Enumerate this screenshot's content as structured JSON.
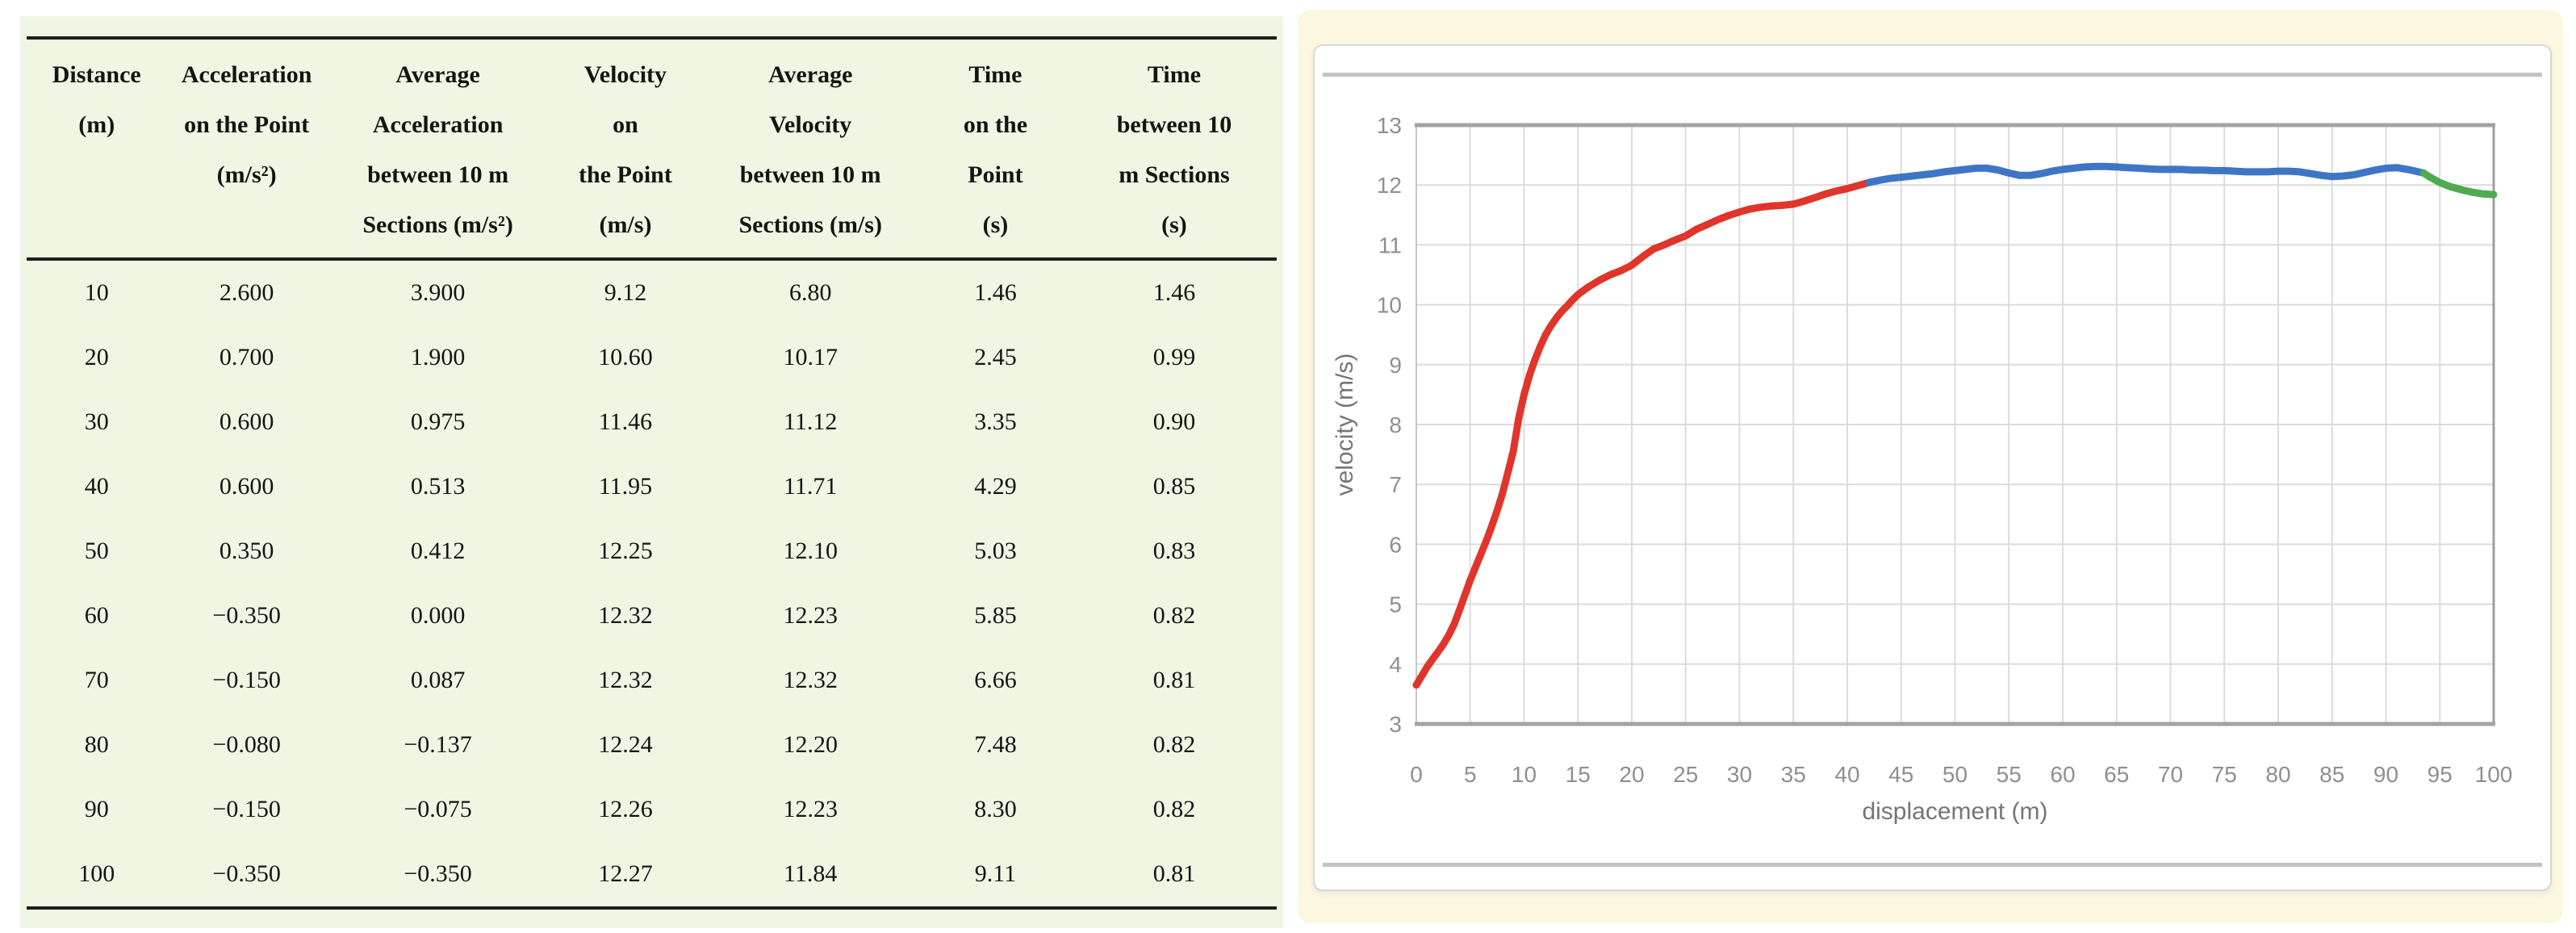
{
  "colors": {
    "table_bg": "#eff7e4",
    "chart_panel_bg": "#fcf7e1",
    "accel_phase": "#e0352b",
    "steady_phase": "#3e76c6",
    "decel_phase": "#4faa51"
  },
  "table": {
    "columns": [
      {
        "id": "distance",
        "lines": [
          "Distance",
          "(m)"
        ]
      },
      {
        "id": "accel-point",
        "lines": [
          "Acceleration",
          "on the Point",
          "(m/s²)"
        ]
      },
      {
        "id": "avg-accel-sections",
        "lines": [
          "Average",
          "Acceleration",
          "between 10 m",
          "Sections (m/s²)"
        ]
      },
      {
        "id": "velocity-point",
        "lines": [
          "Velocity",
          "on",
          "the Point",
          "(m/s)"
        ]
      },
      {
        "id": "avg-velocity-sections",
        "lines": [
          "Average",
          "Velocity",
          "between 10 m",
          "Sections (m/s)"
        ]
      },
      {
        "id": "time-point",
        "lines": [
          "Time",
          "on the",
          "Point",
          "(s)"
        ]
      },
      {
        "id": "time-sections",
        "lines": [
          "Time",
          "between 10",
          "m Sections",
          "(s)"
        ]
      }
    ],
    "rows": [
      [
        "10",
        "2.600",
        "3.900",
        "9.12",
        "6.80",
        "1.46",
        "1.46"
      ],
      [
        "20",
        "0.700",
        "1.900",
        "10.60",
        "10.17",
        "2.45",
        "0.99"
      ],
      [
        "30",
        "0.600",
        "0.975",
        "11.46",
        "11.12",
        "3.35",
        "0.90"
      ],
      [
        "40",
        "0.600",
        "0.513",
        "11.95",
        "11.71",
        "4.29",
        "0.85"
      ],
      [
        "50",
        "0.350",
        "0.412",
        "12.25",
        "12.10",
        "5.03",
        "0.83"
      ],
      [
        "60",
        "−0.350",
        "0.000",
        "12.32",
        "12.23",
        "5.85",
        "0.82"
      ],
      [
        "70",
        "−0.150",
        "0.087",
        "12.32",
        "12.32",
        "6.66",
        "0.81"
      ],
      [
        "80",
        "−0.080",
        "−0.137",
        "12.24",
        "12.20",
        "7.48",
        "0.82"
      ],
      [
        "90",
        "−0.150",
        "−0.075",
        "12.26",
        "12.23",
        "8.30",
        "0.82"
      ],
      [
        "100",
        "−0.350",
        "−0.350",
        "12.27",
        "11.84",
        "9.11",
        "0.81"
      ]
    ]
  },
  "chart_data": {
    "type": "line",
    "title": "",
    "xlabel": "displacement (m)",
    "ylabel": "velocity (m/s)",
    "xlim": [
      0,
      100
    ],
    "ylim": [
      3,
      13
    ],
    "xticks": [
      0,
      5,
      10,
      15,
      20,
      25,
      30,
      35,
      40,
      45,
      50,
      55,
      60,
      65,
      70,
      75,
      80,
      85,
      90,
      95,
      100
    ],
    "yticks": [
      3,
      4,
      5,
      6,
      7,
      8,
      9,
      10,
      11,
      12,
      13
    ],
    "grid": true,
    "legend": "none",
    "series": [
      {
        "name": "acceleration-phase",
        "color": "#e0352b",
        "points": [
          [
            0,
            3.65
          ],
          [
            0.5,
            3.8
          ],
          [
            1,
            3.95
          ],
          [
            1.5,
            4.08
          ],
          [
            2,
            4.2
          ],
          [
            2.5,
            4.33
          ],
          [
            3,
            4.48
          ],
          [
            3.5,
            4.66
          ],
          [
            4,
            4.9
          ],
          [
            4.5,
            5.15
          ],
          [
            5,
            5.4
          ],
          [
            5.5,
            5.62
          ],
          [
            6,
            5.84
          ],
          [
            6.5,
            6.06
          ],
          [
            7,
            6.3
          ],
          [
            7.5,
            6.56
          ],
          [
            8,
            6.85
          ],
          [
            8.5,
            7.2
          ],
          [
            9,
            7.55
          ],
          [
            9.5,
            8.1
          ],
          [
            10,
            8.5
          ],
          [
            10.5,
            8.82
          ],
          [
            11,
            9.08
          ],
          [
            11.5,
            9.3
          ],
          [
            12,
            9.5
          ],
          [
            12.5,
            9.65
          ],
          [
            13,
            9.78
          ],
          [
            13.5,
            9.89
          ],
          [
            14,
            9.98
          ],
          [
            14.5,
            10.08
          ],
          [
            15,
            10.17
          ],
          [
            16,
            10.3
          ],
          [
            17,
            10.41
          ],
          [
            18,
            10.5
          ],
          [
            19,
            10.57
          ],
          [
            20,
            10.66
          ],
          [
            21,
            10.8
          ],
          [
            22,
            10.93
          ],
          [
            23,
            11.0
          ],
          [
            24,
            11.08
          ],
          [
            25,
            11.15
          ],
          [
            26,
            11.26
          ],
          [
            27,
            11.34
          ],
          [
            28,
            11.42
          ],
          [
            29,
            11.49
          ],
          [
            30,
            11.55
          ],
          [
            31,
            11.6
          ],
          [
            32,
            11.63
          ],
          [
            33,
            11.65
          ],
          [
            34,
            11.66
          ],
          [
            35,
            11.68
          ],
          [
            36,
            11.73
          ],
          [
            37,
            11.79
          ],
          [
            38,
            11.85
          ],
          [
            39,
            11.9
          ],
          [
            40,
            11.94
          ],
          [
            41,
            11.99
          ],
          [
            42,
            12.04
          ]
        ]
      },
      {
        "name": "steady-phase",
        "color": "#3e76c6",
        "points": [
          [
            42,
            12.04
          ],
          [
            43,
            12.08
          ],
          [
            44,
            12.11
          ],
          [
            45,
            12.13
          ],
          [
            46,
            12.15
          ],
          [
            47,
            12.17
          ],
          [
            48,
            12.19
          ],
          [
            49,
            12.22
          ],
          [
            50,
            12.24
          ],
          [
            51,
            12.26
          ],
          [
            52,
            12.28
          ],
          [
            53,
            12.28
          ],
          [
            54,
            12.25
          ],
          [
            55,
            12.2
          ],
          [
            56,
            12.16
          ],
          [
            57,
            12.16
          ],
          [
            58,
            12.19
          ],
          [
            59,
            12.23
          ],
          [
            60,
            12.26
          ],
          [
            61,
            12.28
          ],
          [
            62,
            12.3
          ],
          [
            63,
            12.31
          ],
          [
            64,
            12.31
          ],
          [
            65,
            12.3
          ],
          [
            66,
            12.29
          ],
          [
            67,
            12.28
          ],
          [
            68,
            12.27
          ],
          [
            69,
            12.26
          ],
          [
            70,
            12.26
          ],
          [
            71,
            12.26
          ],
          [
            72,
            12.25
          ],
          [
            73,
            12.25
          ],
          [
            74,
            12.24
          ],
          [
            75,
            12.24
          ],
          [
            76,
            12.23
          ],
          [
            77,
            12.22
          ],
          [
            78,
            12.22
          ],
          [
            79,
            12.22
          ],
          [
            80,
            12.23
          ],
          [
            81,
            12.23
          ],
          [
            82,
            12.22
          ],
          [
            83,
            12.19
          ],
          [
            84,
            12.16
          ],
          [
            85,
            12.14
          ],
          [
            86,
            12.15
          ],
          [
            87,
            12.17
          ],
          [
            88,
            12.21
          ],
          [
            89,
            12.25
          ],
          [
            90,
            12.28
          ],
          [
            91,
            12.29
          ],
          [
            92,
            12.26
          ],
          [
            93,
            12.22
          ],
          [
            93.5,
            12.2
          ]
        ]
      },
      {
        "name": "deceleration-phase",
        "color": "#4faa51",
        "points": [
          [
            93.5,
            12.2
          ],
          [
            94,
            12.14
          ],
          [
            95,
            12.04
          ],
          [
            96,
            11.97
          ],
          [
            97,
            11.92
          ],
          [
            98,
            11.88
          ],
          [
            99,
            11.85
          ],
          [
            100,
            11.84
          ]
        ]
      }
    ]
  }
}
